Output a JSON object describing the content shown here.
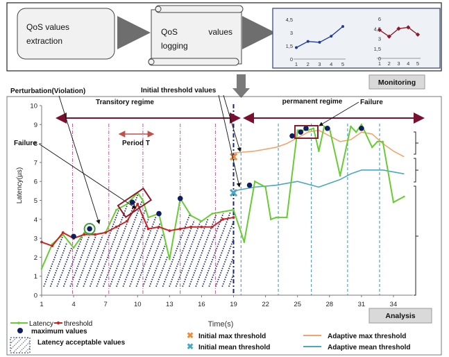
{
  "pipeline": {
    "step1_line1": "QoS values",
    "step1_line2": "extraction",
    "step2_word1": "QoS",
    "step2_word2": "values",
    "step2_line2": "logging",
    "monitoring_label": "Monitoring"
  },
  "mini_charts": [
    {
      "type": "line",
      "x": [
        1,
        2,
        3,
        4,
        5
      ],
      "values": [
        1.3,
        2.0,
        1.9,
        2.6,
        3.7
      ],
      "yticks": [
        "4,5",
        "3",
        "1,5",
        "0"
      ],
      "xticks": [
        "1",
        "2",
        "3",
        "4",
        "5"
      ],
      "ylim": [
        0,
        4.5
      ],
      "color": "#1f3b95"
    },
    {
      "type": "line",
      "x": [
        1,
        2,
        3,
        4,
        5
      ],
      "values": [
        4.3,
        3.3,
        4.5,
        4.7,
        3.6
      ],
      "yticks": [
        "6",
        "4,5",
        "3",
        "1,5",
        "0"
      ],
      "xticks": [
        "1",
        "2",
        "3",
        "4",
        "5"
      ],
      "ylim": [
        0,
        6
      ],
      "color": "#8b1a2a"
    }
  ],
  "annotations": {
    "perturbation": "Perturbation(Violation)",
    "initial_threshold": "Initial threshold values",
    "transitory": "Transitory regime",
    "permanent": "permanent regime",
    "failure_left": "Failure",
    "failure_right": "Failure",
    "period": "Period T"
  },
  "chart_data": {
    "type": "line",
    "ylabel": "Latency(µs)",
    "xlabel": "Time(s)",
    "xlim": [
      1,
      35.5
    ],
    "ylim": [
      0,
      10
    ],
    "xticks": [
      1,
      4,
      7,
      10,
      13,
      16,
      19,
      22,
      25,
      28,
      31,
      34
    ],
    "yticks": [
      0,
      1,
      2,
      3,
      4,
      5,
      6,
      7,
      8,
      9,
      10
    ],
    "series": [
      {
        "name": "Latency",
        "color": "#66cc33",
        "x": [
          1,
          2,
          3,
          4,
          5,
          6,
          7,
          8,
          9,
          10,
          10.5,
          11,
          12,
          12.5,
          13,
          14,
          15,
          16,
          17,
          18,
          19,
          20,
          21,
          22,
          22.5,
          23,
          24,
          25,
          26,
          26.5,
          27,
          27.5,
          28,
          29,
          30,
          30.5,
          31,
          32,
          32.5,
          33,
          34,
          35
        ],
        "y": [
          1.4,
          2.7,
          3.2,
          2.5,
          3.3,
          3.2,
          3.3,
          4.5,
          4.8,
          5.4,
          5.0,
          4.1,
          4.3,
          3.1,
          1.9,
          5.1,
          4.2,
          3.9,
          4.3,
          4.4,
          4.5,
          2.8,
          6.0,
          5.7,
          4.0,
          4.1,
          4.1,
          8.7,
          8.7,
          8.8,
          7.6,
          8.9,
          8.8,
          6.3,
          8.9,
          8.6,
          9.0,
          7.8,
          8.1,
          8.1,
          4.9,
          5.2
        ]
      },
      {
        "name": "threshold",
        "color": "#cc2222",
        "x": [
          1,
          2,
          3,
          4,
          5,
          6,
          7,
          8,
          9,
          10,
          11,
          12,
          13,
          14,
          15,
          16,
          17,
          18,
          19
        ],
        "y": [
          2.8,
          2.6,
          3.3,
          3.0,
          3.2,
          3.2,
          3.3,
          3.6,
          3.9,
          4.8,
          3.5,
          3.6,
          3.4,
          3.5,
          3.6,
          3.6,
          3.6,
          4.0,
          4.1
        ]
      },
      {
        "name": "Adaptive max threshold",
        "color": "#f4a46a",
        "x": [
          19,
          21,
          23,
          24,
          25,
          26,
          27,
          28,
          29,
          30,
          31,
          32,
          33,
          34,
          35
        ],
        "y": [
          7.5,
          7.6,
          7.8,
          8.0,
          8.3,
          8.6,
          8.7,
          8.4,
          8.1,
          8.2,
          8.6,
          8.5,
          8.0,
          7.6,
          7.3
        ]
      },
      {
        "name": "Adaptive mean threshold",
        "color": "#4aa8c0",
        "x": [
          19,
          21,
          23,
          25,
          27,
          28,
          29,
          30,
          31,
          32,
          33,
          34,
          35
        ],
        "y": [
          5.5,
          5.7,
          5.8,
          6.0,
          5.7,
          5.9,
          6.1,
          6.4,
          6.6,
          6.6,
          6.6,
          6.5,
          6.4
        ]
      },
      {
        "name": "maximum values",
        "color": "#101d5e",
        "x": [
          4,
          5.5,
          9.5,
          12,
          14,
          20.5,
          24.5,
          25.3,
          25.8,
          27.8,
          31
        ],
        "y": [
          3.1,
          3.5,
          4.9,
          4.3,
          5.1,
          5.8,
          8.4,
          8.6,
          8.8,
          8.8,
          8.8
        ]
      }
    ],
    "initial_max_threshold": {
      "x": 19,
      "y": 7.3
    },
    "initial_mean_threshold": {
      "x": 19,
      "y": 5.4
    },
    "regime_boundary_x": 19,
    "period_lines_x": [
      3.9,
      7.3,
      10.5,
      14.0,
      17.3
    ],
    "permanent_lines_x": [
      19.7,
      23.2,
      26.3,
      29.7,
      32.7
    ]
  },
  "legend": {
    "latency": "Latency",
    "threshold": "threshold",
    "max_values": "maximum values",
    "acceptable": "Latency acceptable values",
    "time": "Time(s)",
    "initial_max": "Initial max threshold",
    "initial_mean": "Initial mean threshold",
    "adaptive_max": "Adaptive max threshold",
    "adaptive_mean": "Adaptive mean threshold",
    "analysis": "Analysis"
  },
  "colors": {
    "latency": "#66cc33",
    "threshold": "#cc2222",
    "max_point": "#101d5e",
    "regime_arrow": "#7a1030",
    "initial_max": "#f08a3c",
    "initial_mean": "#4aa8c0",
    "adaptive_max": "#f4a46a",
    "adaptive_mean": "#4aa8c0"
  }
}
